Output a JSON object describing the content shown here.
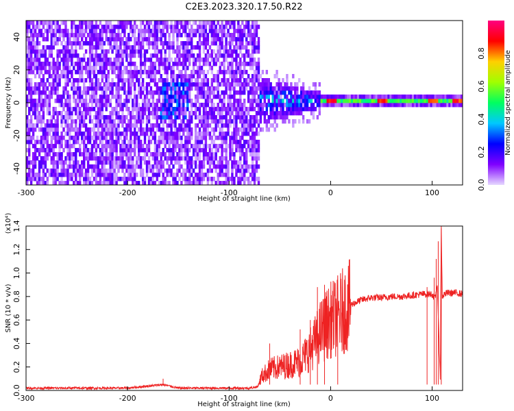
{
  "title": "C2E3.2023.320.17.50.R22",
  "chart_data": [
    {
      "type": "heatmap",
      "xlabel": "Height of straight line (km)",
      "ylabel": "Frequency (Hz)",
      "xlim": [
        -300,
        130
      ],
      "ylim": [
        -50,
        50
      ],
      "x_ticks": [
        -300,
        -200,
        -100,
        0,
        100
      ],
      "y_ticks": [
        -40,
        -20,
        0,
        20,
        40
      ],
      "colorbar": {
        "label": "Normalized spectral amplitude",
        "range": [
          0.0,
          1.0
        ],
        "ticks": [
          "0.0",
          "0.2",
          "0.4",
          "0.6",
          "0.8"
        ],
        "colormap": [
          "#e6d8ff",
          "#7f00ff",
          "#0000ff",
          "#00c8ff",
          "#00ff60",
          "#a0ff00",
          "#ffd000",
          "#ff0000",
          "#ff0080"
        ]
      },
      "features": {
        "noise_region_x": [
          -300,
          -70
        ],
        "spreading_region_x": [
          -70,
          -10
        ],
        "narrow_line_region_x": [
          -10,
          130
        ],
        "line_center_hz": 0,
        "strong_peaks_x": [
          0,
          50,
          100,
          125
        ]
      }
    },
    {
      "type": "line",
      "xlabel": "Height of straight line (km)",
      "ylabel": "SNR (10 * v/v)",
      "y_multiplier": "(x10⁴)",
      "xlim": [
        -300,
        130
      ],
      "ylim": [
        0.0,
        1.4
      ],
      "x_ticks": [
        -300,
        -200,
        -100,
        0,
        100
      ],
      "y_ticks": [
        "0.0",
        "0.2",
        "0.4",
        "0.6",
        "0.8",
        "1.0",
        "1.2",
        "1.4"
      ],
      "series": [
        {
          "color": "#ee2222",
          "x": [
            -300,
            -250,
            -200,
            -165,
            -150,
            -100,
            -80,
            -72,
            -68,
            -60,
            -50,
            -40,
            -30,
            -20,
            -15,
            -10,
            -5,
            0,
            5,
            10,
            15,
            20,
            25,
            30,
            40,
            50,
            60,
            70,
            80,
            90,
            95,
            100,
            103,
            105,
            107,
            108,
            109,
            110,
            112,
            115,
            120,
            125,
            130
          ],
          "y": [
            0.02,
            0.02,
            0.02,
            0.05,
            0.02,
            0.02,
            0.02,
            0.03,
            0.12,
            0.18,
            0.2,
            0.22,
            0.25,
            0.35,
            0.42,
            0.5,
            0.55,
            0.6,
            0.62,
            0.66,
            0.7,
            0.73,
            0.75,
            0.77,
            0.79,
            0.79,
            0.8,
            0.8,
            0.81,
            0.82,
            0.82,
            0.82,
            0.78,
            0.9,
            0.35,
            0.12,
            1.38,
            0.8,
            0.82,
            0.83,
            0.83,
            0.83,
            0.82
          ]
        }
      ],
      "spikes": [
        {
          "x": -165,
          "y": 0.1
        },
        {
          "x": -60,
          "y": 0.4
        },
        {
          "x": -30,
          "y": 0.52
        },
        {
          "x": -20,
          "y": 0.6
        },
        {
          "x": -13,
          "y": 0.88
        },
        {
          "x": -6,
          "y": 0.9
        },
        {
          "x": 7,
          "y": 0.86
        },
        {
          "x": 95,
          "y": 0.88
        },
        {
          "x": 102,
          "y": 0.96
        },
        {
          "x": 104,
          "y": 1.12
        },
        {
          "x": 106,
          "y": 1.27
        },
        {
          "x": 109,
          "y": 1.38
        }
      ]
    }
  ]
}
